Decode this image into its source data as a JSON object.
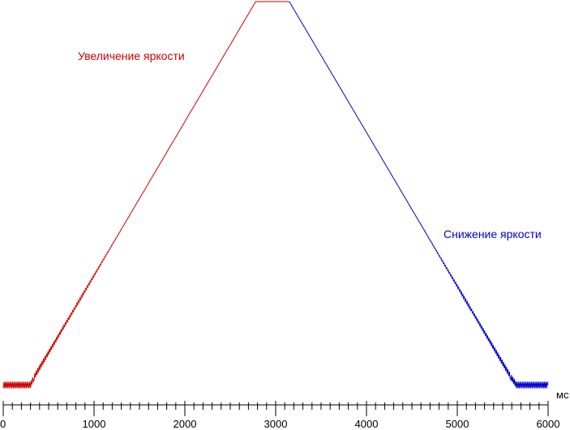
{
  "chart_data": {
    "type": "line",
    "title": "",
    "xlabel": "мс",
    "ylabel": "",
    "xlim": [
      0,
      6000
    ],
    "x_ticks": [
      0,
      1000,
      2000,
      3000,
      4000,
      5000,
      6000
    ],
    "x_tick_labels": [
      "0",
      "1000",
      "2000",
      "3000",
      "4000",
      "5000",
      "6000"
    ],
    "y_axis_shown": false,
    "grid": false,
    "annotations": [
      {
        "text": "Увеличение яркости",
        "color": "#cc0000"
      },
      {
        "text": "Снижение яркости",
        "color": "#0000cc"
      }
    ],
    "series": [
      {
        "color": "#cc0000",
        "x": [
          0,
          300,
          340,
          2780,
          3150
        ],
        "y": [
          0.03,
          0.03,
          0.05,
          1.0,
          1.0
        ]
      },
      {
        "color": "#0000cc",
        "x": [
          3150,
          5590,
          5650,
          6000
        ],
        "y": [
          1.0,
          0.05,
          0.03,
          0.03
        ]
      }
    ]
  }
}
